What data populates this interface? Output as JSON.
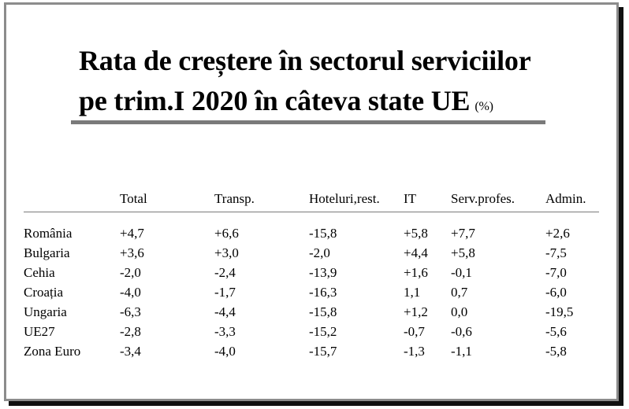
{
  "title_line1": "Rata de creștere în sectorul serviciilor",
  "title_line2": "pe trim.I 2020 în câteva state UE",
  "unit": "(%)",
  "columns": [
    "",
    "Total",
    "Transp.",
    "Hoteluri,rest.",
    "IT",
    "Serv.profes.",
    "Admin."
  ],
  "rows": [
    [
      "România",
      "+4,7",
      "+6,6",
      "-15,8",
      "+5,8",
      "+7,7",
      "+2,6"
    ],
    [
      "Bulgaria",
      "+3,6",
      "+3,0",
      "-2,0",
      "+4,4",
      "+5,8",
      "-7,5"
    ],
    [
      "Cehia",
      "-2,0",
      "-2,4",
      "-13,9",
      "+1,6",
      "-0,1",
      "-7,0"
    ],
    [
      "Croația",
      "-4,0",
      "-1,7",
      "-16,3",
      "1,1",
      "0,7",
      "-6,0"
    ],
    [
      "Ungaria",
      "-6,3",
      "-4,4",
      "-15,8",
      "+1,2",
      "0,0",
      "-19,5"
    ],
    [
      "UE27",
      "-2,8",
      "-3,3",
      "-15,2",
      "-0,7",
      "-0,6",
      "-5,6"
    ],
    [
      "Zona Euro",
      "-3,4",
      "-4,0",
      "-15,7",
      "-1,3",
      "-1,1",
      "-5,8"
    ]
  ]
}
